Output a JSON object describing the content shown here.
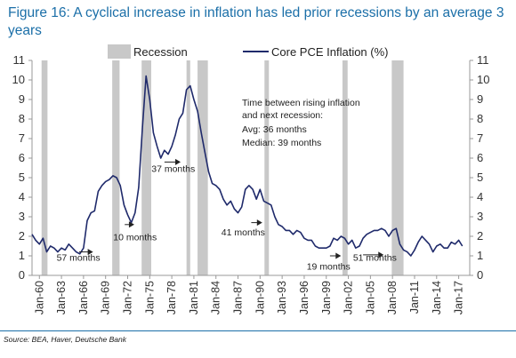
{
  "title": "Figure 16: A cyclical increase in inflation has led prior recessions by an average 3 years",
  "source": "Source: BEA, Haver, Deutsche Bank",
  "colors": {
    "title": "#1b6fa8",
    "line": "#1f2a6b",
    "recession": "#c8c8c8",
    "rule": "#1b6fa8",
    "arrow": "#222222"
  },
  "chart_data": {
    "type": "line",
    "ylim": [
      0,
      11
    ],
    "xlim": [
      1959.0,
      2018.5
    ],
    "yticks": [
      0,
      1,
      2,
      3,
      4,
      5,
      6,
      7,
      8,
      9,
      10,
      11
    ],
    "xtick_values": [
      1960,
      1963,
      1966,
      1969,
      1972,
      1975,
      1978,
      1981,
      1984,
      1987,
      1990,
      1993,
      1996,
      1999,
      2002,
      2005,
      2008,
      2011,
      2014,
      2017
    ],
    "xtick_labels": [
      "Jan-60",
      "Jan-63",
      "Jan-66",
      "Jan-69",
      "Jan-72",
      "Jan-75",
      "Jan-78",
      "Jan-81",
      "Jan-84",
      "Jan-87",
      "Jan-90",
      "Jan-93",
      "Jan-96",
      "Jan-99",
      "Jan-02",
      "Jan-05",
      "Jan-08",
      "Jan-11",
      "Jan-14",
      "Jan-17"
    ],
    "recession_label": "Recession",
    "recessions": [
      [
        1960.3,
        1961.1
      ],
      [
        1969.9,
        1970.9
      ],
      [
        1973.9,
        1975.2
      ],
      [
        1980.0,
        1980.5
      ],
      [
        1981.5,
        1982.9
      ],
      [
        1990.6,
        1991.2
      ],
      [
        2001.2,
        2001.9
      ],
      [
        2007.9,
        2009.5
      ]
    ],
    "series": [
      {
        "name": "Core PCE Inflation (%)",
        "x": [
          1959.0,
          1959.5,
          1960.0,
          1960.5,
          1961.0,
          1961.5,
          1962.0,
          1962.5,
          1963.0,
          1963.5,
          1964.0,
          1964.5,
          1965.0,
          1965.5,
          1966.0,
          1966.5,
          1967.0,
          1967.5,
          1968.0,
          1968.5,
          1969.0,
          1969.5,
          1970.0,
          1970.5,
          1971.0,
          1971.5,
          1972.0,
          1972.5,
          1973.0,
          1973.5,
          1974.0,
          1974.5,
          1975.0,
          1975.5,
          1976.0,
          1976.5,
          1977.0,
          1977.5,
          1978.0,
          1978.5,
          1979.0,
          1979.5,
          1980.0,
          1980.5,
          1981.0,
          1981.5,
          1982.0,
          1982.5,
          1983.0,
          1983.5,
          1984.0,
          1984.5,
          1985.0,
          1985.5,
          1986.0,
          1986.5,
          1987.0,
          1987.5,
          1988.0,
          1988.5,
          1989.0,
          1989.5,
          1990.0,
          1990.5,
          1991.0,
          1991.5,
          1992.0,
          1992.5,
          1993.0,
          1993.5,
          1994.0,
          1994.5,
          1995.0,
          1995.5,
          1996.0,
          1996.5,
          1997.0,
          1997.5,
          1998.0,
          1998.5,
          1999.0,
          1999.5,
          2000.0,
          2000.5,
          2001.0,
          2001.5,
          2002.0,
          2002.5,
          2003.0,
          2003.5,
          2004.0,
          2004.5,
          2005.0,
          2005.5,
          2006.0,
          2006.5,
          2007.0,
          2007.5,
          2008.0,
          2008.5,
          2009.0,
          2009.5,
          2010.0,
          2010.5,
          2011.0,
          2011.5,
          2012.0,
          2012.5,
          2013.0,
          2013.5,
          2014.0,
          2014.5,
          2015.0,
          2015.5,
          2016.0,
          2016.5,
          2017.0,
          2017.5
        ],
        "values": [
          2.1,
          1.8,
          1.6,
          1.9,
          1.2,
          1.5,
          1.4,
          1.2,
          1.4,
          1.3,
          1.6,
          1.4,
          1.2,
          1.1,
          1.4,
          2.8,
          3.2,
          3.3,
          4.3,
          4.6,
          4.8,
          4.9,
          5.1,
          5.0,
          4.6,
          3.6,
          3.1,
          2.7,
          3.2,
          4.5,
          7.5,
          10.2,
          9.0,
          7.3,
          6.6,
          6.0,
          6.4,
          6.2,
          6.6,
          7.2,
          8.0,
          8.3,
          9.5,
          9.7,
          9.0,
          8.4,
          7.3,
          6.3,
          5.3,
          4.7,
          4.6,
          4.4,
          3.9,
          3.6,
          3.8,
          3.4,
          3.2,
          3.5,
          4.4,
          4.6,
          4.4,
          3.9,
          4.4,
          3.8,
          3.7,
          3.6,
          3.0,
          2.6,
          2.5,
          2.3,
          2.3,
          2.1,
          2.3,
          2.2,
          1.9,
          1.8,
          1.8,
          1.5,
          1.4,
          1.4,
          1.4,
          1.5,
          1.9,
          1.8,
          2.0,
          1.9,
          1.6,
          1.8,
          1.4,
          1.5,
          1.9,
          2.1,
          2.2,
          2.3,
          2.3,
          2.4,
          2.3,
          2.0,
          2.3,
          2.4,
          1.6,
          1.3,
          1.2,
          1.0,
          1.3,
          1.7,
          2.0,
          1.8,
          1.6,
          1.2,
          1.5,
          1.6,
          1.4,
          1.4,
          1.7,
          1.6,
          1.8,
          1.5
        ]
      }
    ],
    "annotations": {
      "note": [
        "Time between rising inflation",
        "and next recession:",
        "Avg: 36 months",
        "Median: 39 months"
      ],
      "labels": [
        {
          "text": "57 months",
          "x": 1965.3,
          "y": 0.75
        },
        {
          "text": "10 months",
          "x": 1973.0,
          "y": 1.8
        },
        {
          "text": "37 months",
          "x": 1978.2,
          "y": 5.3
        },
        {
          "text": "41 months",
          "x": 1987.7,
          "y": 2.05
        },
        {
          "text": "19 months",
          "x": 1999.3,
          "y": 0.3
        },
        {
          "text": "51 months",
          "x": 2005.6,
          "y": 0.75
        }
      ],
      "arrows": [
        {
          "x": 1965.4,
          "y": 1.2,
          "x2": 1967.3,
          "y2": 1.2
        },
        {
          "x": 1971.6,
          "y": 2.6,
          "x2": 1972.9,
          "y2": 2.6
        },
        {
          "x": 1977.0,
          "y": 5.8,
          "x2": 1979.2,
          "y2": 5.8
        },
        {
          "x": 1988.8,
          "y": 2.7,
          "x2": 1990.3,
          "y2": 2.7
        },
        {
          "x": 1999.5,
          "y": 1.0,
          "x2": 2001.0,
          "y2": 1.0
        },
        {
          "x": 2004.0,
          "y": 1.05,
          "x2": 2006.8,
          "y2": 1.05
        }
      ]
    },
    "legend_position": "top-center"
  }
}
